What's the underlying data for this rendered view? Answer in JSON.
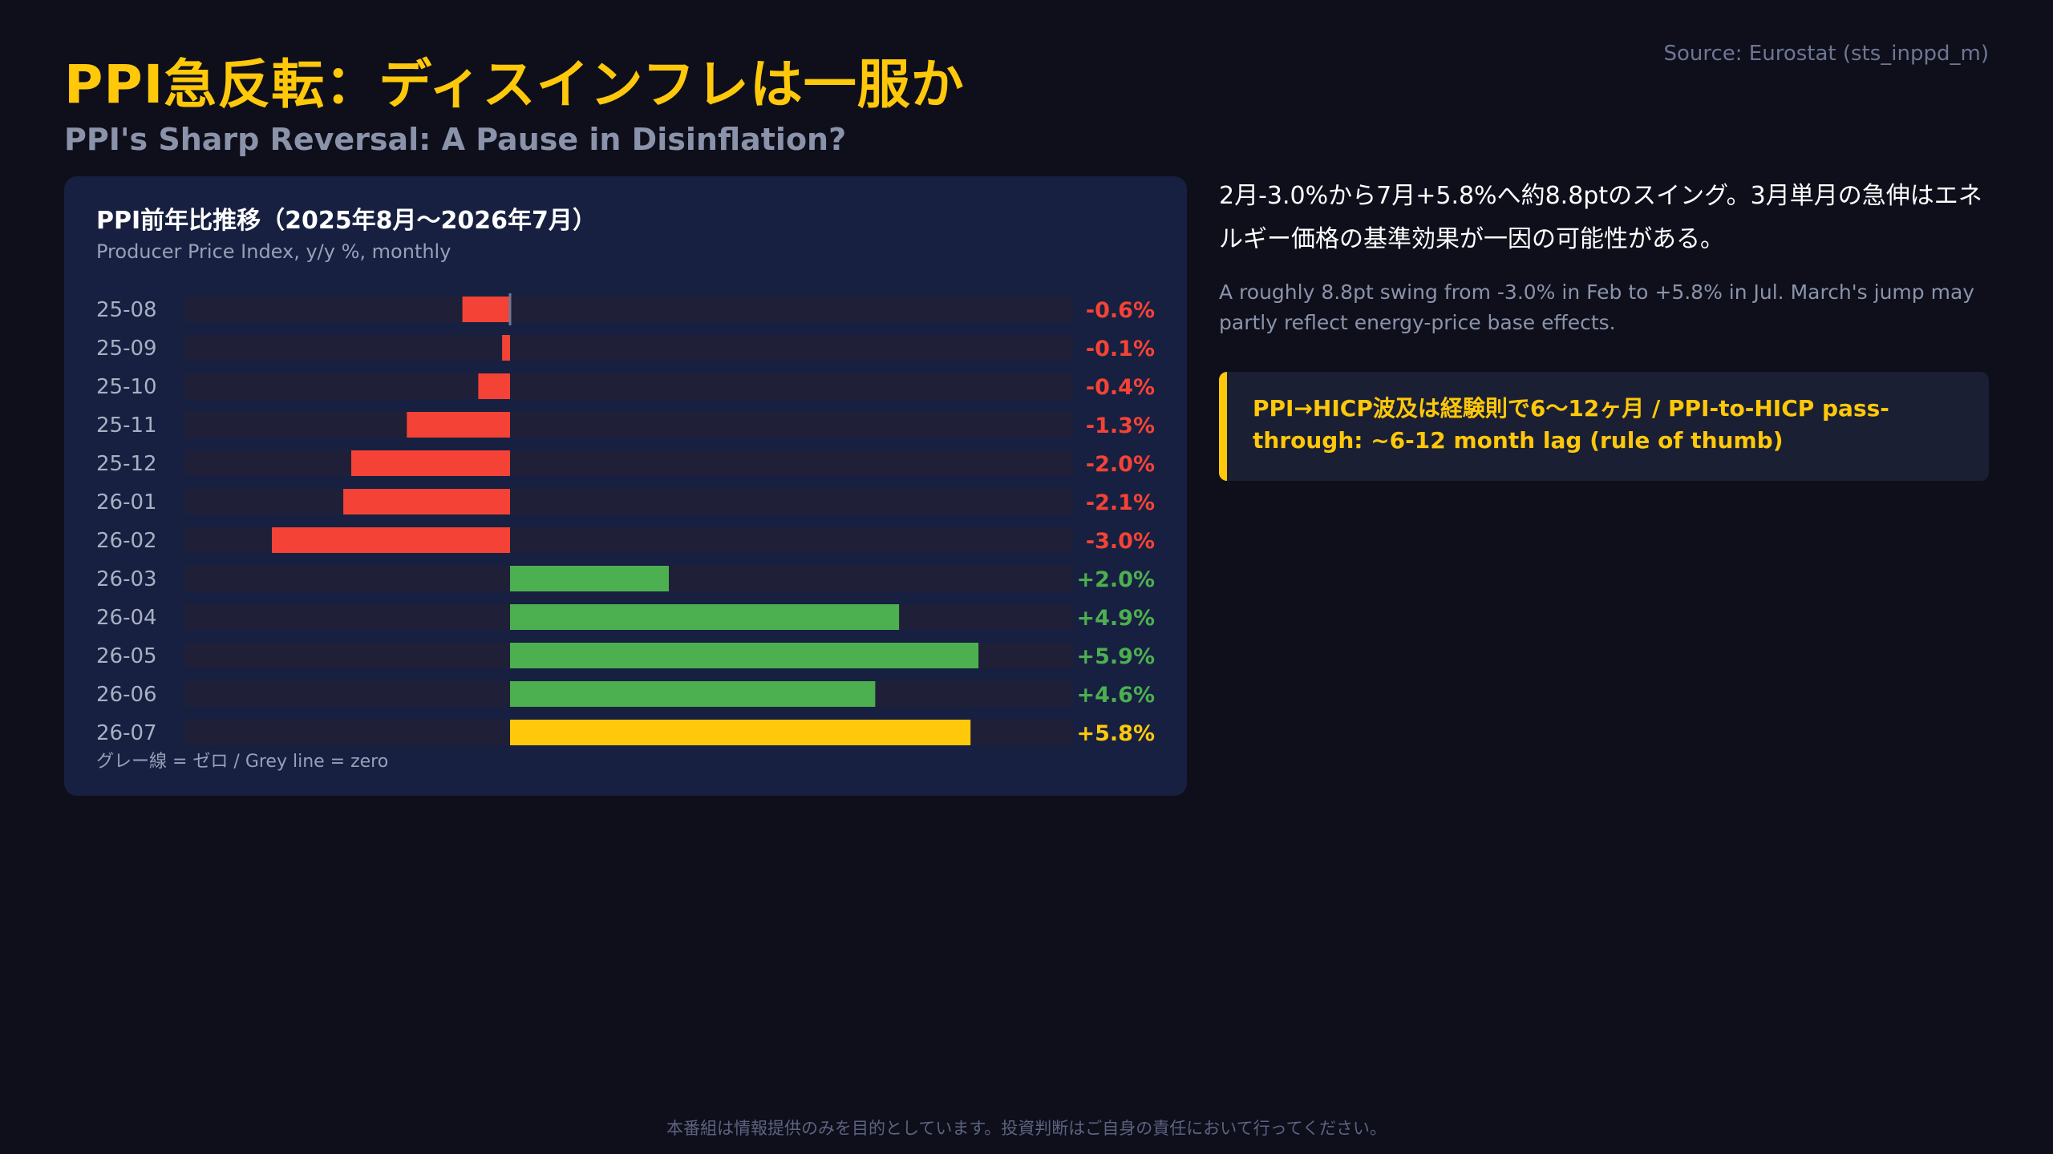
{
  "header": {
    "title": "PPI急反転：ディスインフレは一服か",
    "subtitle": "PPI's Sharp Reversal: A Pause in Disinflation?",
    "source": "Source: Eurostat (sts_inppd_m)"
  },
  "panel": {
    "title": "PPI前年比推移（2025年8月〜2026年7月）",
    "subtitle": "Producer Price Index, y/y %, monthly",
    "footnote": "グレー線 = ゼロ / Grey line = zero"
  },
  "commentary": {
    "ja": "2月-3.0%から7月+5.8%へ約8.8ptのスイング。3月単月の急伸はエネルギー価格の基準効果が一因の可能性がある。",
    "en": "A roughly 8.8pt swing from -3.0% in Feb to +5.8% in Jul. March's jump may partly reflect energy-price base effects.",
    "callout": "PPI→HICP波及は経験則で6〜12ヶ月 / PPI-to-HICP pass-through: ~6-12 month lag (rule of thumb)"
  },
  "disclaimer": "本番組は情報提供のみを目的としています。投資判断はご自身の責任において行ってください。",
  "colors": {
    "negative": "#f44336",
    "positive": "#4caf50",
    "latest": "#ffc80a",
    "track": "#1f2038",
    "zero_line": "#6f7890"
  },
  "chart_data": {
    "type": "bar",
    "orientation": "horizontal",
    "categories": [
      "25-08",
      "25-09",
      "25-10",
      "25-11",
      "25-12",
      "26-01",
      "26-02",
      "26-03",
      "26-04",
      "26-05",
      "26-06",
      "26-07"
    ],
    "values": [
      -0.6,
      -0.1,
      -0.4,
      -1.3,
      -2.0,
      -2.1,
      -3.0,
      2.0,
      4.9,
      5.9,
      4.6,
      5.8
    ],
    "value_labels": [
      "-0.6%",
      "-0.1%",
      "-0.4%",
      "-1.3%",
      "-2.0%",
      "-2.1%",
      "-3.0%",
      "+2.0%",
      "+4.9%",
      "+5.9%",
      "+4.6%",
      "+5.8%"
    ],
    "highlight_index": 11,
    "xlim": [
      -4.0,
      7.0
    ],
    "title": "PPI前年比推移（2025年8月〜2026年7月）",
    "xlabel": "",
    "ylabel": ""
  }
}
